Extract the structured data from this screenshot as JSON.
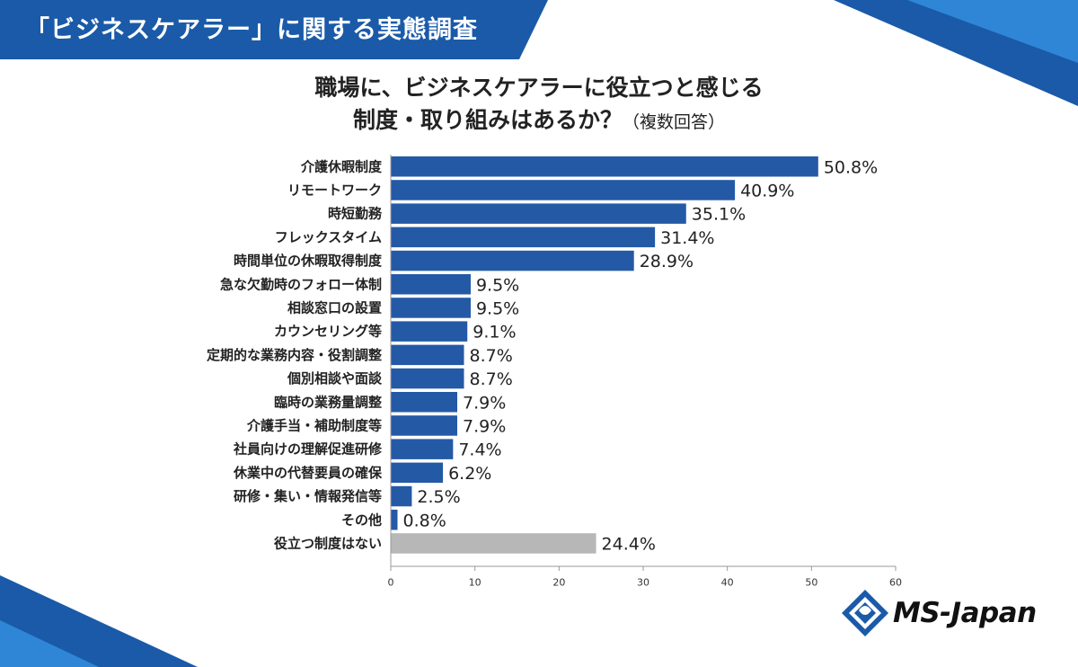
{
  "header": {
    "banner_title": "「ビジネスケアラー」に関する実態調査"
  },
  "chart_data": {
    "type": "bar",
    "orientation": "horizontal",
    "title_line1": "職場に、ビジネスケアラーに役立つと感じる",
    "title_line2": "制度・取り組みはあるか？",
    "title_note": "（複数回答）",
    "categories": [
      "介護休暇制度",
      "リモートワーク",
      "時短勤務",
      "フレックスタイム",
      "時間単位の休暇取得制度",
      "急な欠勤時のフォロー体制",
      "相談窓口の設置",
      "カウンセリング等",
      "定期的な業務内容・役割調整",
      "個別相談や面談",
      "臨時の業務量調整",
      "介護手当・補助制度等",
      "社員向けの理解促進研修",
      "休業中の代替要員の確保",
      "研修・集い・情報発信等",
      "その他",
      "役立つ制度はない"
    ],
    "values": [
      50.8,
      40.9,
      35.1,
      31.4,
      28.9,
      9.5,
      9.5,
      9.1,
      8.7,
      8.7,
      7.9,
      7.9,
      7.4,
      6.2,
      2.5,
      0.8,
      24.4
    ],
    "value_labels": [
      "50.8%",
      "40.9%",
      "35.1%",
      "31.4%",
      "28.9%",
      "9.5%",
      "9.5%",
      "9.1%",
      "8.7%",
      "8.7%",
      "7.9%",
      "7.9%",
      "7.4%",
      "6.2%",
      "2.5%",
      "0.8%",
      "24.4%"
    ],
    "bar_colors": [
      "#2459a6",
      "#2459a6",
      "#2459a6",
      "#2459a6",
      "#2459a6",
      "#2459a6",
      "#2459a6",
      "#2459a6",
      "#2459a6",
      "#2459a6",
      "#2459a6",
      "#2459a6",
      "#2459a6",
      "#2459a6",
      "#2459a6",
      "#2459a6",
      "#b7b7b7"
    ],
    "xlim": [
      0,
      60
    ],
    "xticks": [
      0,
      10,
      20,
      30,
      40,
      50,
      60
    ],
    "grid": false,
    "legend": "none"
  },
  "logo": {
    "text": "MS-Japan"
  },
  "colors": {
    "accent": "#1a5aa8",
    "bar": "#2459a6",
    "bar_none": "#b7b7b7"
  }
}
